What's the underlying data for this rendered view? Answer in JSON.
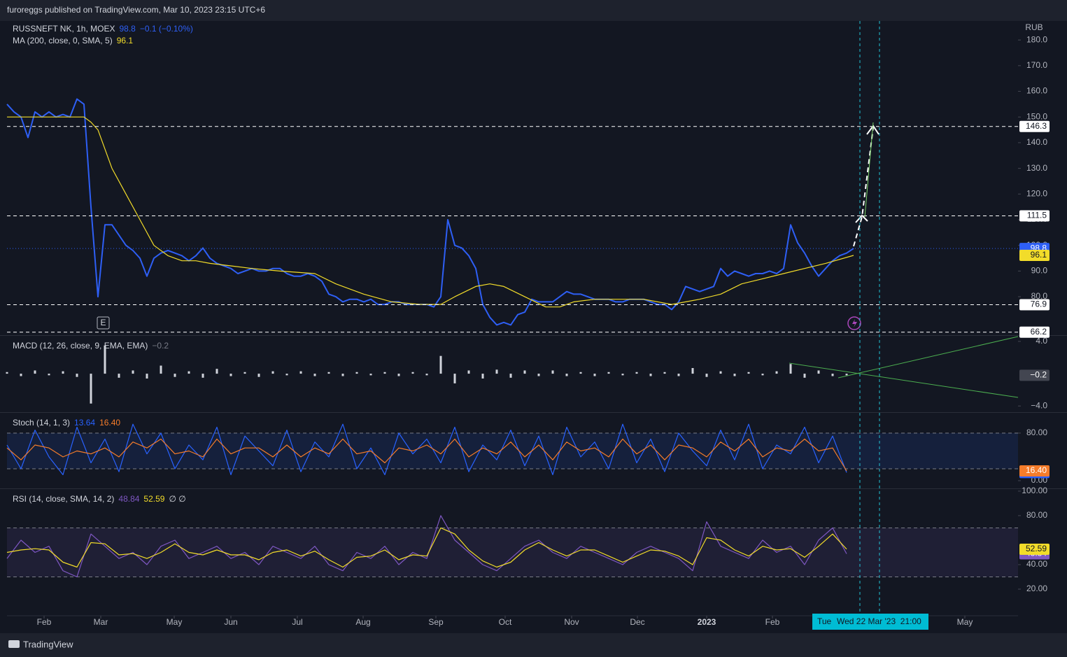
{
  "header": "furoreggs published on TradingView.com, Mar 10, 2023 23:15 UTC+6",
  "footer": "TradingView",
  "marker": "E",
  "crosshair": {
    "labels": [
      "Tue",
      "Wed 22 Mar '23  21:00"
    ]
  },
  "chart_data": [
    {
      "type": "line",
      "title": "RUSSNEFT NK, 1h, MOEX",
      "change": "−0.1 (−0.10%)",
      "y_label": "RUB",
      "xlim": [
        0,
        144.5
      ],
      "xticks": [
        {
          "value": 5.3,
          "label": "Feb"
        },
        {
          "value": 13.4,
          "label": "Mar"
        },
        {
          "value": 23.9,
          "label": "May"
        },
        {
          "value": 32,
          "label": "Jun"
        },
        {
          "value": 41.5,
          "label": "Jul"
        },
        {
          "value": 50.9,
          "label": "Aug"
        },
        {
          "value": 61.3,
          "label": "Sep"
        },
        {
          "value": 71.2,
          "label": "Oct"
        },
        {
          "value": 80.7,
          "label": "Nov"
        },
        {
          "value": 90.1,
          "label": "Dec"
        },
        {
          "value": 100,
          "label": "2023"
        },
        {
          "value": 109.4,
          "label": "Feb"
        },
        {
          "value": 136.9,
          "label": "May"
        }
      ],
      "ylim": [
        65.3,
        187.4
      ],
      "yticks": [
        {
          "value": 80,
          "label": "80.0"
        },
        {
          "value": 90,
          "label": "90.0"
        },
        {
          "value": 100,
          "label": "100.0"
        },
        {
          "value": 110,
          "label": "110.0"
        },
        {
          "value": 120,
          "label": "120.0"
        },
        {
          "value": 130,
          "label": "130.0"
        },
        {
          "value": 140,
          "label": "140.0"
        },
        {
          "value": 150,
          "label": "150.0"
        },
        {
          "value": 160,
          "label": "160.0"
        },
        {
          "value": 170,
          "label": "170.0"
        },
        {
          "value": 180,
          "label": "180.0"
        }
      ],
      "levels": [
        146.3,
        111.5,
        76.9,
        66.2
      ],
      "level_color": "#ffffff",
      "series": [
        {
          "color": "#2e5ff5",
          "x": [
            0,
            1,
            2,
            3,
            4,
            5,
            6,
            7,
            8,
            9,
            10,
            11,
            12,
            13,
            14,
            15,
            16,
            17,
            18,
            19,
            20,
            21,
            22,
            23,
            24,
            25,
            26,
            27,
            28,
            29,
            30,
            31,
            32,
            33,
            34,
            35,
            36,
            37,
            38,
            39,
            40,
            41,
            42,
            43,
            44,
            45,
            46,
            47,
            48,
            49,
            50,
            51,
            52,
            53,
            54,
            55,
            56,
            57,
            58,
            59,
            60,
            61,
            62,
            63,
            64,
            65,
            66,
            67,
            68,
            69,
            70,
            71,
            72,
            73,
            74,
            75,
            76,
            77,
            78,
            79,
            80,
            81,
            82,
            83,
            84,
            85,
            86,
            87,
            88,
            89,
            90,
            91,
            92,
            93,
            94,
            95,
            96,
            97,
            98,
            99,
            100,
            101,
            102,
            103,
            104,
            105,
            106,
            107,
            108,
            109,
            110,
            111,
            112,
            113,
            114,
            115,
            116,
            117,
            118,
            119,
            120,
            121
          ],
          "values": [
            155,
            152,
            150,
            142,
            152,
            150,
            152,
            150,
            151,
            150,
            157,
            155,
            115,
            80,
            108,
            108,
            104,
            100,
            98,
            95,
            88,
            95,
            97,
            98,
            97,
            96,
            94,
            96,
            99,
            95,
            93,
            92,
            91,
            89,
            90,
            91,
            90,
            90,
            91,
            91,
            89,
            88,
            88,
            89,
            88,
            86,
            81,
            80,
            78,
            79,
            79,
            78,
            79,
            77,
            77,
            78,
            78,
            77,
            77,
            77,
            77,
            76,
            80,
            110,
            100,
            99,
            96,
            91,
            77,
            72,
            69,
            70,
            69,
            73,
            74,
            79,
            78,
            78,
            78,
            80,
            82,
            81,
            81,
            80,
            79,
            79,
            79,
            78,
            78,
            79,
            79,
            79,
            78,
            77,
            77,
            75,
            78,
            84,
            83,
            82,
            83,
            84,
            91,
            88,
            90,
            89,
            88,
            89,
            89,
            90,
            89,
            91,
            108,
            101,
            97,
            92,
            88,
            91,
            94,
            96,
            97,
            98.8
          ]
        },
        {
          "name": "MA (200, close, 0, SMA, 5)",
          "color": "#f2dc2a",
          "x": [
            0,
            11,
            12,
            13,
            15,
            17,
            19,
            21,
            23,
            25,
            27,
            29,
            32,
            35,
            39,
            44,
            47,
            51,
            55,
            59,
            62,
            64,
            67,
            69,
            71,
            74,
            77,
            79,
            81,
            84,
            87,
            91,
            95,
            97,
            99,
            102,
            105,
            108,
            111,
            114,
            117,
            121
          ],
          "values": [
            150,
            150,
            148,
            145,
            130,
            120,
            110,
            100,
            96,
            94,
            94,
            93,
            92,
            91,
            90,
            89,
            85,
            81,
            78,
            77,
            77,
            80,
            84,
            85,
            84,
            80,
            76,
            76,
            78,
            79,
            79,
            79,
            77,
            78,
            79,
            81,
            85,
            87,
            89,
            91,
            93,
            96.1
          ]
        }
      ]
    },
    {
      "type": "bar",
      "title": "MACD (12, 26, close, 9, EMA, EMA)",
      "ylim": [
        -4.5,
        4.6
      ],
      "yticks": [
        {
          "value": 4,
          "label": "4.0"
        },
        {
          "value": -4,
          "label": "−4.0"
        }
      ],
      "series": [
        {
          "color": "#d1d4dc",
          "last_label": "−0.2",
          "x": [
            0,
            2,
            4,
            6,
            8,
            10,
            12,
            14,
            16,
            18,
            20,
            22,
            24,
            26,
            28,
            30,
            32,
            34,
            36,
            38,
            40,
            42,
            44,
            46,
            48,
            50,
            52,
            54,
            56,
            58,
            60,
            62,
            64,
            66,
            68,
            70,
            72,
            74,
            76,
            78,
            80,
            82,
            84,
            86,
            88,
            90,
            92,
            94,
            96,
            98,
            100,
            102,
            104,
            106,
            108,
            110,
            112,
            114,
            116,
            118,
            120
          ],
          "values": [
            0.2,
            -0.3,
            0.4,
            -0.2,
            0.3,
            -0.4,
            -3.7,
            3.5,
            -0.5,
            0.4,
            -0.6,
            1.0,
            -0.4,
            0.3,
            -0.5,
            0.6,
            -0.3,
            0.2,
            -0.4,
            0.3,
            -0.2,
            0.3,
            -0.3,
            0.2,
            -0.3,
            0.2,
            -0.2,
            0.2,
            -0.3,
            0.2,
            -0.2,
            2.2,
            -1.2,
            0.4,
            -0.6,
            0.5,
            -0.5,
            0.4,
            -0.3,
            0.4,
            -0.3,
            0.2,
            -0.3,
            0.2,
            -0.2,
            0.2,
            -0.3,
            0.2,
            -0.3,
            0.7,
            -0.4,
            0.3,
            -0.3,
            0.2,
            -0.2,
            0.3,
            1.2,
            -0.5,
            0.4,
            -0.3,
            -0.2
          ]
        }
      ]
    },
    {
      "type": "line",
      "title": "Stoch (14, 1, 3)",
      "ylim": [
        -10.6,
        112.9
      ],
      "yticks": [
        {
          "value": 80,
          "label": "80.00"
        },
        {
          "value": 0,
          "label": "0.00"
        }
      ],
      "bands": [
        20,
        80
      ],
      "band_color": "#2962ff",
      "series": [
        {
          "color": "#2962ff",
          "x": [
            0,
            2,
            4,
            6,
            8,
            10,
            12,
            14,
            16,
            18,
            20,
            22,
            24,
            26,
            28,
            30,
            32,
            34,
            36,
            38,
            40,
            42,
            44,
            46,
            48,
            50,
            52,
            54,
            56,
            58,
            60,
            62,
            64,
            66,
            68,
            70,
            72,
            74,
            76,
            78,
            80,
            82,
            84,
            86,
            88,
            90,
            92,
            94,
            96,
            98,
            100,
            102,
            104,
            106,
            108,
            110,
            112,
            114,
            116,
            118,
            120
          ],
          "values": [
            60,
            20,
            85,
            40,
            10,
            90,
            30,
            70,
            15,
            95,
            45,
            80,
            20,
            60,
            35,
            90,
            10,
            75,
            50,
            25,
            85,
            15,
            65,
            40,
            95,
            20,
            55,
            10,
            80,
            45,
            70,
            30,
            90,
            15,
            60,
            35,
            85,
            25,
            75,
            10,
            90,
            40,
            65,
            20,
            95,
            30,
            70,
            15,
            80,
            50,
            25,
            85,
            35,
            95,
            20,
            60,
            45,
            90,
            30,
            75,
            13.64
          ]
        },
        {
          "color": "#f57c2a",
          "last_label": "16.40",
          "x": [
            0,
            2,
            4,
            6,
            8,
            10,
            12,
            14,
            16,
            18,
            20,
            22,
            24,
            26,
            28,
            30,
            32,
            34,
            36,
            38,
            40,
            42,
            44,
            46,
            48,
            50,
            52,
            54,
            56,
            58,
            60,
            62,
            64,
            66,
            68,
            70,
            72,
            74,
            76,
            78,
            80,
            82,
            84,
            86,
            88,
            90,
            92,
            94,
            96,
            98,
            100,
            102,
            104,
            106,
            108,
            110,
            112,
            114,
            116,
            118,
            120
          ],
          "values": [
            55,
            35,
            60,
            55,
            40,
            50,
            45,
            55,
            40,
            65,
            55,
            70,
            45,
            50,
            40,
            70,
            45,
            55,
            55,
            40,
            60,
            40,
            55,
            45,
            70,
            45,
            50,
            30,
            55,
            50,
            60,
            45,
            70,
            40,
            55,
            45,
            65,
            40,
            60,
            35,
            65,
            50,
            55,
            40,
            70,
            45,
            60,
            35,
            60,
            55,
            40,
            65,
            50,
            70,
            40,
            55,
            50,
            70,
            50,
            55,
            16.4
          ]
        }
      ]
    },
    {
      "type": "line",
      "title": "RSI (14, close, SMA, 14, 2)",
      "extra": "∅ ∅",
      "ylim": [
        -1.7,
        101.1
      ],
      "yticks": [
        {
          "value": 100,
          "label": "100.00"
        },
        {
          "value": 80,
          "label": "80.00"
        },
        {
          "value": 40,
          "label": "40.00"
        },
        {
          "value": 20,
          "label": "20.00"
        }
      ],
      "bands": [
        30,
        70
      ],
      "band_color": "#7e57c2",
      "series": [
        {
          "color": "#7e57c2",
          "x": [
            0,
            2,
            4,
            6,
            8,
            10,
            12,
            14,
            16,
            18,
            20,
            22,
            24,
            26,
            28,
            30,
            32,
            34,
            36,
            38,
            40,
            42,
            44,
            46,
            48,
            50,
            52,
            54,
            56,
            58,
            60,
            62,
            64,
            66,
            68,
            70,
            72,
            74,
            76,
            78,
            80,
            82,
            84,
            86,
            88,
            90,
            92,
            94,
            96,
            98,
            100,
            102,
            104,
            106,
            108,
            110,
            112,
            114,
            116,
            118,
            120
          ],
          "values": [
            45,
            60,
            50,
            55,
            35,
            30,
            65,
            55,
            45,
            50,
            40,
            55,
            60,
            45,
            50,
            55,
            45,
            50,
            40,
            55,
            50,
            45,
            55,
            40,
            35,
            50,
            45,
            55,
            40,
            50,
            45,
            80,
            60,
            50,
            40,
            35,
            45,
            55,
            60,
            50,
            45,
            55,
            50,
            45,
            40,
            50,
            55,
            50,
            45,
            35,
            75,
            55,
            50,
            45,
            60,
            50,
            55,
            40,
            60,
            70,
            48.84
          ]
        },
        {
          "color": "#f2dc2a",
          "x": [
            0,
            2,
            4,
            6,
            8,
            10,
            12,
            14,
            16,
            18,
            20,
            22,
            24,
            26,
            28,
            30,
            32,
            34,
            36,
            38,
            40,
            42,
            44,
            46,
            48,
            50,
            52,
            54,
            56,
            58,
            60,
            62,
            64,
            66,
            68,
            70,
            72,
            74,
            76,
            78,
            80,
            82,
            84,
            86,
            88,
            90,
            92,
            94,
            96,
            98,
            100,
            102,
            104,
            106,
            108,
            110,
            112,
            114,
            116,
            118,
            120
          ],
          "values": [
            50,
            52,
            53,
            52,
            42,
            38,
            58,
            57,
            48,
            49,
            45,
            50,
            57,
            50,
            48,
            52,
            48,
            48,
            44,
            50,
            52,
            47,
            51,
            44,
            38,
            46,
            47,
            52,
            44,
            48,
            47,
            70,
            65,
            52,
            43,
            38,
            42,
            52,
            58,
            52,
            47,
            52,
            52,
            47,
            42,
            47,
            52,
            51,
            47,
            40,
            62,
            60,
            52,
            47,
            55,
            52,
            53,
            46,
            55,
            65,
            52.59
          ]
        }
      ]
    }
  ]
}
